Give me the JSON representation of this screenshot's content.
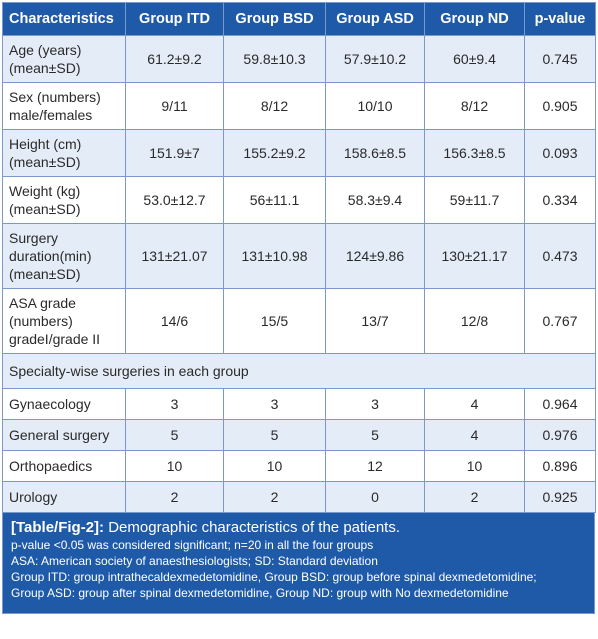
{
  "table": {
    "headers": [
      "Characteristics",
      "Group ITD",
      "Group BSD",
      "Group ASD",
      "Group ND",
      "p-value"
    ],
    "rows": [
      {
        "label": "Age (years)\n(mean±SD)",
        "values": [
          "61.2±9.2",
          "59.8±10.3",
          "57.9±10.2",
          "60±9.4",
          "0.745"
        ]
      },
      {
        "label": "Sex (numbers)\nmale/females",
        "values": [
          "9/11",
          "8/12",
          "10/10",
          "8/12",
          "0.905"
        ]
      },
      {
        "label": "Height (cm)\n(mean±SD)",
        "values": [
          "151.9±7",
          "155.2±9.2",
          "158.6±8.5",
          "156.3±8.5",
          "0.093"
        ]
      },
      {
        "label": "Weight (kg)\n(mean±SD)",
        "values": [
          "53.0±12.7",
          "56±11.1",
          "58.3±9.4",
          "59±11.7",
          "0.334"
        ]
      },
      {
        "label": "Surgery\nduration(min)\n(mean±SD)",
        "values": [
          "131±21.07",
          "131±10.98",
          "124±9.86",
          "130±21.17",
          "0.473"
        ]
      },
      {
        "label": "ASA grade\n(numbers)\ngradeI/grade II",
        "values": [
          "14/6",
          "15/5",
          "13/7",
          "12/8",
          "0.767"
        ]
      }
    ],
    "section_header": "Specialty-wise surgeries in each group",
    "specialty_rows": [
      {
        "label": "Gynaecology",
        "values": [
          "3",
          "3",
          "3",
          "4",
          "0.964"
        ]
      },
      {
        "label": "General surgery",
        "values": [
          "5",
          "5",
          "5",
          "4",
          "0.976"
        ]
      },
      {
        "label": "Orthopaedics",
        "values": [
          "10",
          "10",
          "12",
          "10",
          "0.896"
        ]
      },
      {
        "label": "Urology",
        "values": [
          "2",
          "2",
          "0",
          "2",
          "0.925"
        ]
      }
    ]
  },
  "caption": {
    "tag": "[Table/Fig-2]:",
    "title": " Demographic characteristics of the patients.",
    "notes": [
      "p-value <0.05 was considered significant; n=20 in all the four groups",
      "ASA: American society of anaesthesiologists; SD: Standard deviation",
      "Group ITD: group intrathecaldexmedetomidine, Group BSD: group before spinal dexmedetomidine;",
      "Group ASD: group after spinal dexmedetomidine, Group ND: group with No dexmedetomidine"
    ]
  },
  "colors": {
    "header_bg": "#1f5aa8",
    "band_bg": "#e4ecf7",
    "border": "#7a98c8"
  }
}
